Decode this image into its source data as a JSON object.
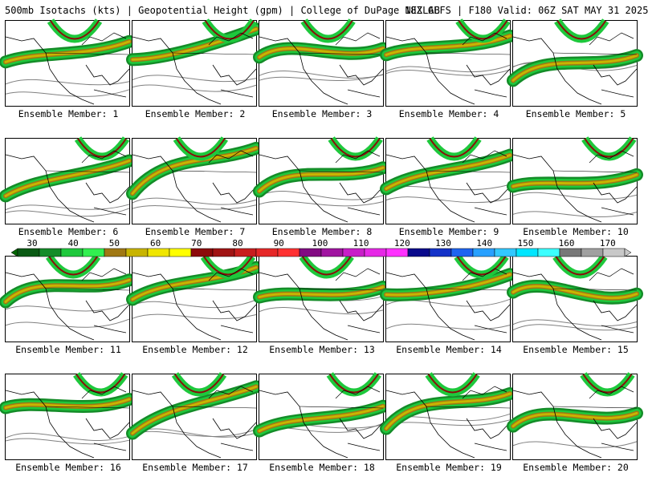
{
  "header": {
    "left": "500mb Isotachs (kts) | Geopotential Height (gpm) | College of DuPage NEXLAB",
    "right": "18Z GEFS | F180 Valid: 06Z SAT MAY 31 2025"
  },
  "members": [
    {
      "label": "Ensemble Member: 1"
    },
    {
      "label": "Ensemble Member: 2"
    },
    {
      "label": "Ensemble Member: 3"
    },
    {
      "label": "Ensemble Member: 4"
    },
    {
      "label": "Ensemble Member: 5"
    },
    {
      "label": "Ensemble Member: 6"
    },
    {
      "label": "Ensemble Member: 7"
    },
    {
      "label": "Ensemble Member: 8"
    },
    {
      "label": "Ensemble Member: 9"
    },
    {
      "label": "Ensemble Member: 10"
    },
    {
      "label": "Ensemble Member: 11"
    },
    {
      "label": "Ensemble Member: 12"
    },
    {
      "label": "Ensemble Member: 13"
    },
    {
      "label": "Ensemble Member: 14"
    },
    {
      "label": "Ensemble Member: 15"
    },
    {
      "label": "Ensemble Member: 16"
    },
    {
      "label": "Ensemble Member: 17"
    },
    {
      "label": "Ensemble Member: 18"
    },
    {
      "label": "Ensemble Member: 19"
    },
    {
      "label": "Ensemble Member: 20"
    }
  ],
  "colorbar": {
    "ticks_top": [
      "30",
      "40",
      "50",
      "60",
      "70",
      "80",
      "90",
      "100",
      "110",
      "120",
      "130",
      "140",
      "150",
      "160",
      "170"
    ],
    "colors": [
      "#0a5a14",
      "#148c28",
      "#1ec83c",
      "#32f050",
      "#a07814",
      "#c8b400",
      "#f0e600",
      "#ffff00",
      "#8c0a0a",
      "#a01414",
      "#c81e1e",
      "#e62828",
      "#ff3232",
      "#820a82",
      "#a014a0",
      "#c81ec8",
      "#e628e6",
      "#ff32ff",
      "#0a0a8c",
      "#1432c8",
      "#1e64f0",
      "#28a0ff",
      "#32c8ff",
      "#00e6ff",
      "#3cffff",
      "#787878",
      "#a0a0a0",
      "#c8c8c8"
    ]
  }
}
